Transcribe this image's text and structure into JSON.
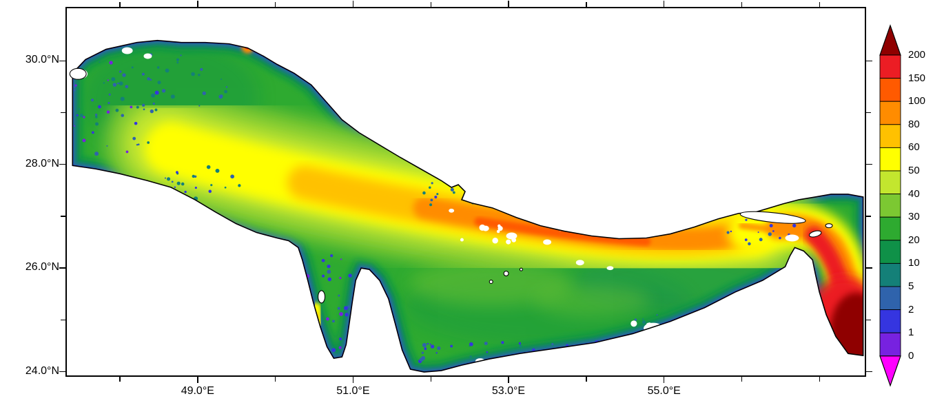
{
  "figure": {
    "background": "#ffffff",
    "frame_color": "#000000"
  },
  "map": {
    "region_shown": "Persian Gulf",
    "coastline_color": "#000000",
    "land_color": "#ffffff",
    "base_water_color": "#2eaa30",
    "missing_data_color": "#ffffff"
  },
  "chart_data": {
    "type": "heatmap",
    "title": "",
    "x_axis": {
      "range": [
        47.3,
        57.6
      ],
      "minor_tick_values": [
        48,
        49,
        50,
        51,
        52,
        53,
        54,
        55,
        56,
        57
      ],
      "labeled_ticks": [
        {
          "value": 49,
          "label": "49.0°E"
        },
        {
          "value": 51,
          "label": "51.0°E"
        },
        {
          "value": 53,
          "label": "53.0°E"
        },
        {
          "value": 55,
          "label": "55.0°E"
        }
      ]
    },
    "y_axis": {
      "range": [
        23.9,
        31.04
      ],
      "minor_tick_values": [
        24,
        25,
        26,
        27,
        28,
        29,
        30
      ],
      "labeled_ticks": [
        {
          "value": 30,
          "label": "30.0°N"
        },
        {
          "value": 28,
          "label": "28.0°N"
        },
        {
          "value": 26,
          "label": "26.0°N"
        },
        {
          "value": 24,
          "label": "24.0°N"
        }
      ]
    },
    "colorbar": {
      "orientation": "vertical",
      "position": "right",
      "levels": [
        0,
        1,
        2,
        5,
        10,
        20,
        30,
        40,
        50,
        60,
        80,
        100,
        150,
        200
      ],
      "tick_labels_top_to_bottom": [
        "200",
        "150",
        "100",
        "80",
        "60",
        "50",
        "40",
        "30",
        "20",
        "10",
        "5",
        "2",
        "1",
        "0"
      ],
      "segment_colors_top_to_bottom": [
        "#ec1d24",
        "#ff5a00",
        "#ff8c00",
        "#ffc100",
        "#ffff00",
        "#c3e62e",
        "#7cc832",
        "#2eaa30",
        "#0f9148",
        "#148078",
        "#2f63ac",
        "#3535e0",
        "#7722e0"
      ],
      "over_color": "#8f0000",
      "under_color": "#ff00ff"
    }
  }
}
